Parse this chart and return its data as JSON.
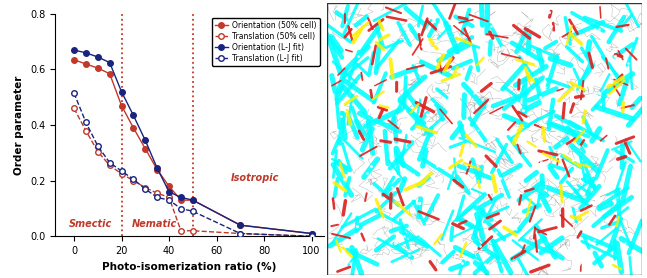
{
  "orient_50_x": [
    0,
    5,
    10,
    15,
    20,
    25,
    30,
    35,
    40,
    45,
    50,
    70,
    100
  ],
  "orient_50_y": [
    0.635,
    0.62,
    0.605,
    0.585,
    0.47,
    0.39,
    0.315,
    0.24,
    0.18,
    0.13,
    0.13,
    0.04,
    0.01
  ],
  "trans_50_x": [
    0,
    5,
    10,
    15,
    20,
    25,
    30,
    35,
    40,
    45,
    50,
    70,
    100
  ],
  "trans_50_y": [
    0.46,
    0.38,
    0.305,
    0.255,
    0.225,
    0.2,
    0.175,
    0.155,
    0.14,
    0.02,
    0.02,
    0.01,
    0.0
  ],
  "orient_lj_x": [
    0,
    5,
    10,
    15,
    20,
    25,
    30,
    35,
    40,
    45,
    50,
    70,
    100
  ],
  "orient_lj_y": [
    0.67,
    0.66,
    0.645,
    0.625,
    0.52,
    0.435,
    0.345,
    0.245,
    0.16,
    0.14,
    0.13,
    0.04,
    0.01
  ],
  "trans_lj_x": [
    0,
    5,
    10,
    15,
    20,
    25,
    30,
    35,
    40,
    45,
    50,
    70,
    100
  ],
  "trans_lj_y": [
    0.515,
    0.41,
    0.325,
    0.265,
    0.235,
    0.205,
    0.17,
    0.14,
    0.13,
    0.1,
    0.09,
    0.01,
    0.0
  ],
  "color_red": "#c0392b",
  "color_blue": "#1a237e",
  "vline1": 20,
  "vline2": 50,
  "xlim": [
    -8,
    105
  ],
  "ylim": [
    0,
    0.8
  ],
  "xlabel": "Photo-isomerization ratio (%)",
  "ylabel": "Order parameter",
  "label_smectic": "Smectic",
  "label_nematic": "Nematic",
  "label_isotropic": "Isotropic",
  "legend_entries": [
    "Orientation (50% cell)",
    "Translation (50% cell)",
    "Orientation (L-J fit)",
    "Translation (L-J fit)"
  ],
  "xticks": [
    0,
    20,
    40,
    60,
    80,
    100
  ],
  "yticks": [
    0.0,
    0.2,
    0.4,
    0.6,
    0.8
  ]
}
